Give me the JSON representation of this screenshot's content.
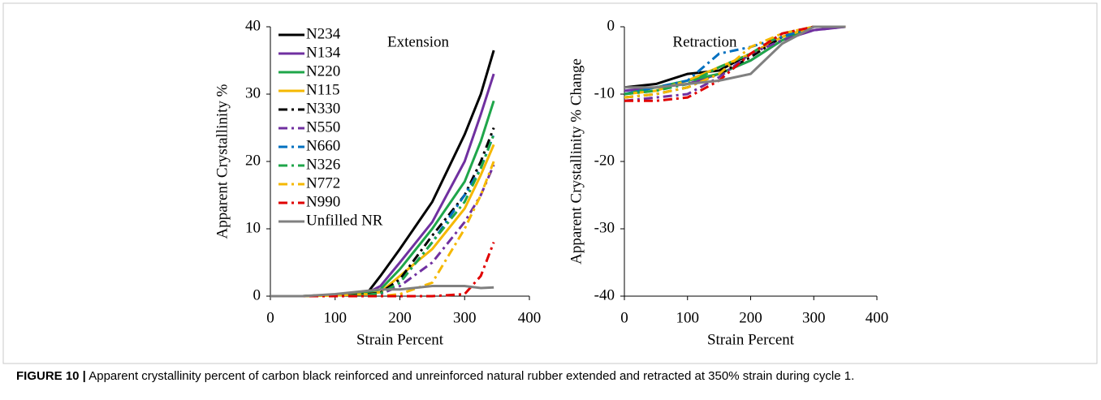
{
  "chart_data": [
    {
      "type": "line",
      "annotation": "Extension",
      "x_label": "Strain Percent",
      "y_label": "Apparent Crystallinity %",
      "x": [
        0,
        50,
        100,
        150,
        170,
        200,
        250,
        300,
        325,
        345
      ],
      "xlim": [
        0,
        400
      ],
      "xticks": [
        0,
        100,
        200,
        300,
        400
      ],
      "ylim": [
        0,
        40
      ],
      "yticks": [
        0,
        10,
        20,
        30,
        40
      ],
      "series": [
        {
          "name": "N234",
          "color": "#000000",
          "dash": "solid",
          "values": [
            0,
            0,
            0.2,
            0.5,
            3,
            7,
            14,
            24,
            30,
            36.5
          ]
        },
        {
          "name": "N134",
          "color": "#7030a0",
          "dash": "solid",
          "values": [
            0,
            0,
            0.2,
            0.5,
            1.5,
            5,
            11,
            20,
            27,
            33
          ]
        },
        {
          "name": "N220",
          "color": "#1fa64a",
          "dash": "solid",
          "values": [
            0,
            0,
            0.2,
            0.5,
            1,
            4,
            10,
            17,
            23,
            29
          ]
        },
        {
          "name": "N115",
          "color": "#f5b800",
          "dash": "solid",
          "values": [
            0,
            0,
            0.1,
            0.3,
            0.6,
            3,
            7,
            13,
            18,
            22.5
          ]
        },
        {
          "name": "N330",
          "color": "#000000",
          "dash": "dashdot",
          "values": [
            0,
            0,
            0,
            0.3,
            0.5,
            2.5,
            9,
            15,
            20,
            25
          ]
        },
        {
          "name": "N550",
          "color": "#7030a0",
          "dash": "dashdot",
          "values": [
            0,
            0,
            0,
            0.2,
            0.3,
            1.5,
            5,
            11,
            15,
            19.5
          ]
        },
        {
          "name": "N660",
          "color": "#0070c0",
          "dash": "dashdot",
          "values": [
            0,
            0,
            0,
            0.2,
            0.4,
            2,
            8,
            15,
            19,
            24
          ]
        },
        {
          "name": "N326",
          "color": "#1fa64a",
          "dash": "dashdot",
          "values": [
            0,
            0,
            0,
            0.2,
            0.4,
            2,
            8,
            14,
            19,
            24
          ]
        },
        {
          "name": "N772",
          "color": "#f5b800",
          "dash": "dashdot",
          "values": [
            0,
            0,
            0,
            0,
            0,
            0.3,
            2,
            10,
            15,
            20
          ]
        },
        {
          "name": "N990",
          "color": "#e00000",
          "dash": "dashdot",
          "values": [
            0,
            0,
            0,
            0,
            0,
            0,
            0,
            0.3,
            3,
            8
          ]
        },
        {
          "name": "Unfilled NR",
          "color": "#808080",
          "dash": "solid",
          "values": [
            0,
            0,
            0.3,
            0.8,
            1,
            1,
            1.5,
            1.5,
            1.2,
            1.3
          ]
        }
      ]
    },
    {
      "type": "line",
      "annotation": "Retraction",
      "x_label": "Strain Percent",
      "y_label": "Apparent Crystallinity % Change",
      "x": [
        0,
        50,
        100,
        150,
        200,
        250,
        300,
        350
      ],
      "xlim": [
        0,
        400
      ],
      "xticks": [
        0,
        100,
        200,
        300,
        400
      ],
      "ylim": [
        -40,
        0
      ],
      "yticks": [
        -40,
        -30,
        -20,
        -10,
        0
      ],
      "series": [
        {
          "color": "#000000",
          "dash": "solid",
          "values": [
            -9,
            -8.5,
            -7,
            -6.5,
            -4,
            -1.5,
            0,
            0
          ]
        },
        {
          "color": "#7030a0",
          "dash": "solid",
          "values": [
            -9.5,
            -9,
            -8.5,
            -7,
            -5,
            -2,
            -0.5,
            0
          ]
        },
        {
          "color": "#1fa64a",
          "dash": "solid",
          "values": [
            -10,
            -9,
            -8,
            -7,
            -5,
            -2,
            0,
            0
          ]
        },
        {
          "color": "#f5b800",
          "dash": "solid",
          "values": [
            -10,
            -9.5,
            -8,
            -6,
            -4,
            -1.5,
            0,
            0
          ]
        },
        {
          "color": "#000000",
          "dash": "dashdot",
          "values": [
            -10.5,
            -10,
            -9,
            -7,
            -4.5,
            -1.5,
            0,
            0
          ]
        },
        {
          "color": "#7030a0",
          "dash": "dashdot",
          "values": [
            -11,
            -10.5,
            -10,
            -7.5,
            -4,
            -2,
            -0.5,
            0
          ]
        },
        {
          "color": "#0070c0",
          "dash": "dashdot",
          "values": [
            -10,
            -9,
            -8,
            -4,
            -3,
            -1.5,
            0,
            0
          ]
        },
        {
          "color": "#1fa64a",
          "dash": "dashdot",
          "values": [
            -10,
            -9.5,
            -8.5,
            -6,
            -4,
            -1,
            0,
            0
          ]
        },
        {
          "color": "#f5b800",
          "dash": "dashdot",
          "values": [
            -10.5,
            -10,
            -9,
            -7,
            -3,
            -1,
            0,
            0
          ]
        },
        {
          "color": "#e00000",
          "dash": "dashdot",
          "values": [
            -11,
            -11,
            -10.5,
            -8,
            -4,
            -1,
            0,
            0
          ]
        },
        {
          "color": "#808080",
          "dash": "solid",
          "values": [
            -9,
            -9,
            -8.5,
            -8,
            -7,
            -2.5,
            0,
            0
          ]
        }
      ]
    }
  ],
  "caption": {
    "label": "FIGURE 10 |",
    "text": "Apparent crystallinity percent of carbon black reinforced and unreinforced natural rubber extended and retracted at 350% strain during cycle 1."
  }
}
